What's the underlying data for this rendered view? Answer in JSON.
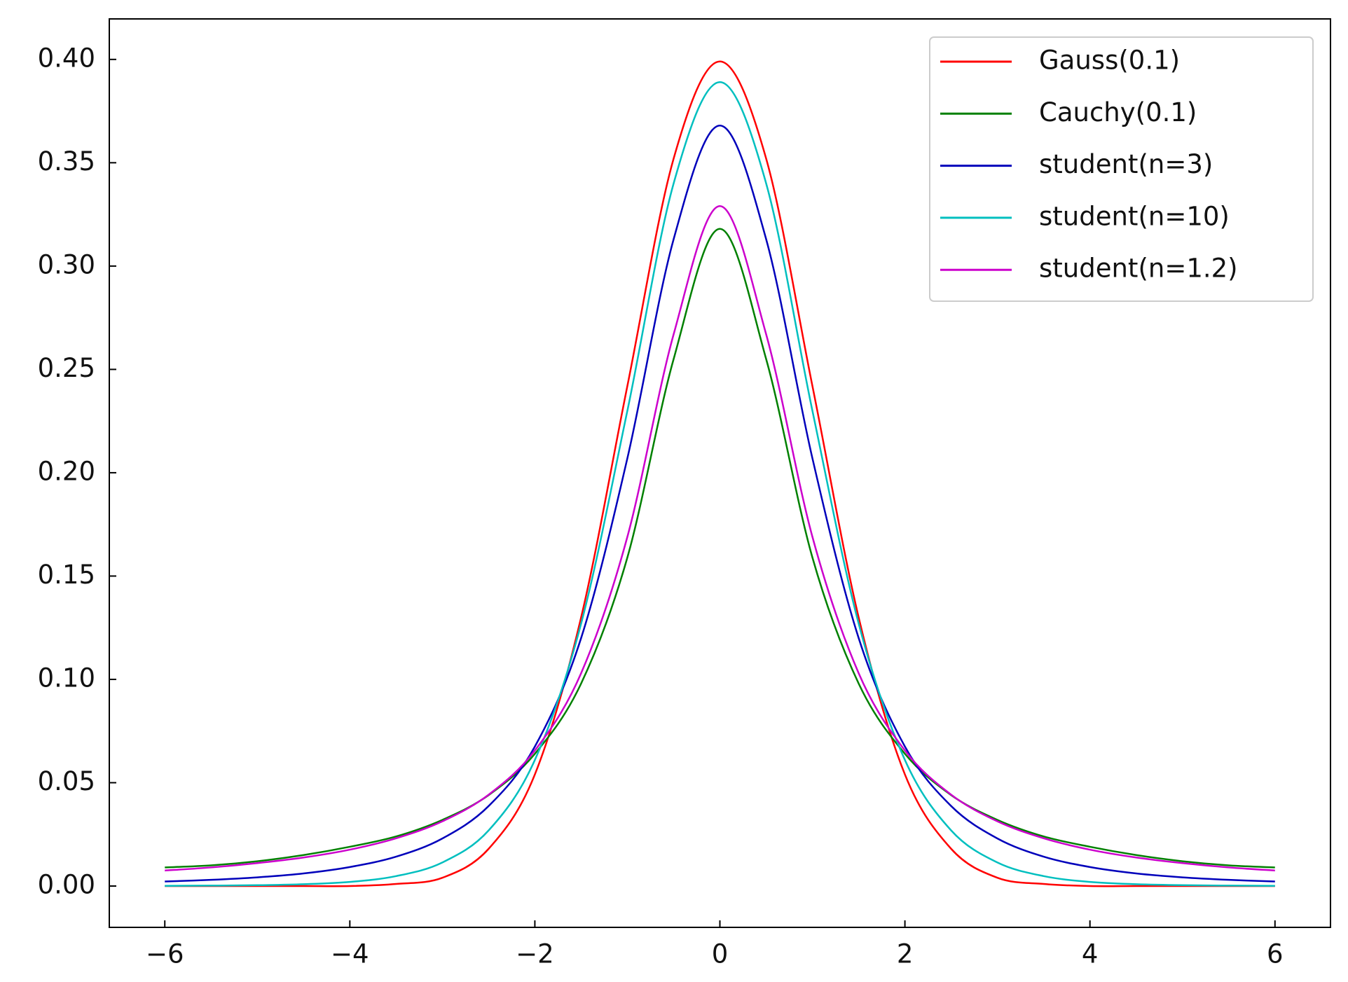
{
  "chart_data": {
    "type": "line",
    "x": [
      -6,
      -5.5,
      -5,
      -4.5,
      -4,
      -3.5,
      -3,
      -2.5,
      -2,
      -1.5,
      -1,
      -0.5,
      0,
      0.5,
      1,
      1.5,
      2,
      2.5,
      3,
      3.5,
      4,
      4.5,
      5,
      5.5,
      6
    ],
    "series": [
      {
        "name": "Gauss(0.1)",
        "color": "#ff0000",
        "values": [
          0,
          0,
          0,
          0,
          0,
          0.001,
          0.004,
          0.018,
          0.054,
          0.13,
          0.242,
          0.352,
          0.399,
          0.352,
          0.242,
          0.13,
          0.054,
          0.018,
          0.004,
          0.001,
          0,
          0,
          0,
          0,
          0
        ]
      },
      {
        "name": "Cauchy(0.1)",
        "color": "#008000",
        "values": [
          0.009,
          0.01,
          0.012,
          0.015,
          0.019,
          0.024,
          0.032,
          0.044,
          0.064,
          0.098,
          0.159,
          0.255,
          0.318,
          0.255,
          0.159,
          0.098,
          0.064,
          0.044,
          0.032,
          0.024,
          0.019,
          0.015,
          0.012,
          0.01,
          0.009
        ]
      },
      {
        "name": "student(n=3)",
        "color": "#0000bb",
        "values": [
          0.0022,
          0.003,
          0.0042,
          0.0061,
          0.0092,
          0.0142,
          0.023,
          0.0387,
          0.0675,
          0.12,
          0.207,
          0.313,
          0.368,
          0.313,
          0.207,
          0.12,
          0.0675,
          0.0387,
          0.023,
          0.0142,
          0.0092,
          0.0061,
          0.0042,
          0.003,
          0.0022
        ]
      },
      {
        "name": "student(n=10)",
        "color": "#00bfbf",
        "values": [
          0.0001,
          0.0002,
          0.0004,
          0.0009,
          0.002,
          0.0048,
          0.0114,
          0.0269,
          0.061,
          0.127,
          0.23,
          0.34,
          0.389,
          0.34,
          0.23,
          0.127,
          0.061,
          0.0269,
          0.0114,
          0.0048,
          0.002,
          0.0009,
          0.0004,
          0.0002,
          0.0001
        ]
      },
      {
        "name": "student(n=1.2)",
        "color": "#cc00cc",
        "values": [
          0.0075,
          0.009,
          0.0111,
          0.0138,
          0.0176,
          0.0231,
          0.0313,
          0.0442,
          0.0656,
          0.103,
          0.169,
          0.267,
          0.329,
          0.267,
          0.169,
          0.103,
          0.0656,
          0.0442,
          0.0313,
          0.0231,
          0.0176,
          0.0138,
          0.0111,
          0.009,
          0.0075
        ]
      }
    ],
    "xlim": [
      -6.6,
      6.6
    ],
    "ylim": [
      -0.02,
      0.4196
    ],
    "xticks": [
      {
        "value": -6,
        "label": "−6"
      },
      {
        "value": -4,
        "label": "−4"
      },
      {
        "value": -2,
        "label": "−2"
      },
      0,
      2,
      4,
      6
    ],
    "yticks": [
      {
        "value": 0,
        "label": "0.00"
      },
      {
        "value": 0.05,
        "label": "0.05"
      },
      {
        "value": 0.1,
        "label": "0.10"
      },
      {
        "value": 0.15,
        "label": "0.15"
      },
      {
        "value": 0.2,
        "label": "0.20"
      },
      {
        "value": 0.25,
        "label": "0.25"
      },
      {
        "value": 0.3,
        "label": "0.30"
      },
      {
        "value": 0.35,
        "label": "0.35"
      },
      {
        "value": 0.4,
        "label": "0.40"
      }
    ],
    "legend": "upper right",
    "grid": false
  }
}
